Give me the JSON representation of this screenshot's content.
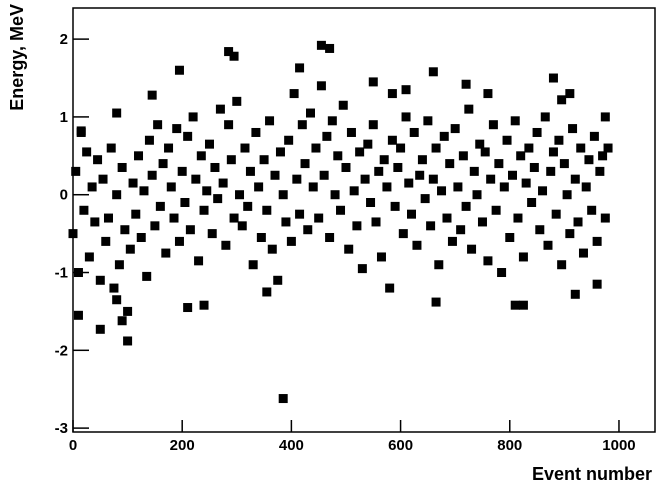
{
  "chart_data": {
    "type": "scatter",
    "xlabel": "Event number",
    "ylabel": "Energy, MeV",
    "color": "#000000",
    "xlim": [
      0,
      1066
    ],
    "ylim": [
      -3.05,
      2.4
    ],
    "xticks": [
      0,
      200,
      400,
      600,
      800,
      1000
    ],
    "yticks": [
      -3,
      -2,
      -1,
      0,
      1,
      2
    ],
    "x": [
      0,
      5,
      10,
      15,
      20,
      25,
      30,
      35,
      40,
      45,
      50,
      55,
      60,
      65,
      70,
      75,
      80,
      85,
      90,
      95,
      100,
      105,
      110,
      115,
      120,
      125,
      130,
      135,
      140,
      145,
      150,
      155,
      160,
      165,
      170,
      175,
      180,
      185,
      190,
      195,
      200,
      205,
      210,
      215,
      220,
      225,
      230,
      235,
      240,
      245,
      250,
      255,
      260,
      265,
      270,
      275,
      280,
      285,
      290,
      295,
      300,
      305,
      310,
      315,
      320,
      325,
      330,
      335,
      340,
      345,
      350,
      355,
      360,
      365,
      370,
      375,
      380,
      385,
      390,
      395,
      400,
      405,
      410,
      415,
      420,
      425,
      430,
      435,
      440,
      445,
      450,
      455,
      460,
      465,
      470,
      475,
      480,
      485,
      490,
      495,
      500,
      505,
      510,
      515,
      520,
      525,
      530,
      535,
      540,
      545,
      550,
      555,
      560,
      565,
      570,
      575,
      580,
      585,
      590,
      595,
      600,
      605,
      610,
      615,
      620,
      625,
      630,
      635,
      640,
      645,
      650,
      655,
      660,
      665,
      670,
      675,
      680,
      685,
      690,
      695,
      700,
      705,
      710,
      715,
      720,
      725,
      730,
      735,
      740,
      745,
      750,
      755,
      760,
      765,
      770,
      775,
      780,
      785,
      790,
      795,
      800,
      805,
      810,
      815,
      820,
      825,
      830,
      835,
      840,
      845,
      850,
      855,
      860,
      865,
      870,
      875,
      880,
      885,
      890,
      895,
      900,
      905,
      910,
      915,
      920,
      925,
      930,
      935,
      940,
      945,
      950,
      955,
      960,
      965,
      970,
      975,
      980,
      385,
      455,
      470,
      285,
      295,
      195,
      415,
      660,
      880,
      100,
      50,
      10,
      90,
      80,
      210,
      240,
      665,
      810,
      825,
      920,
      960,
      355,
      145,
      80,
      15,
      720,
      910,
      895,
      975,
      760,
      550,
      585,
      610
    ],
    "y": [
      -0.5,
      0.3,
      -1.0,
      0.8,
      -0.2,
      0.55,
      -0.8,
      0.1,
      -0.35,
      0.45,
      -1.1,
      0.2,
      -0.6,
      -0.3,
      0.6,
      -1.2,
      0.0,
      -0.9,
      0.35,
      -0.45,
      -1.5,
      -0.7,
      0.15,
      -0.25,
      0.5,
      -0.55,
      0.05,
      -1.05,
      0.7,
      0.25,
      -0.4,
      0.9,
      -0.15,
      0.4,
      -0.75,
      0.6,
      0.1,
      -0.3,
      0.85,
      -0.6,
      0.3,
      -0.1,
      0.75,
      -0.45,
      1.0,
      0.2,
      -0.85,
      0.5,
      -0.2,
      0.05,
      0.65,
      -0.5,
      0.35,
      -0.05,
      1.1,
      0.15,
      -0.65,
      0.9,
      0.45,
      -0.3,
      1.2,
      0.0,
      -0.4,
      0.6,
      -0.15,
      0.3,
      -0.9,
      0.8,
      0.1,
      -0.55,
      0.45,
      -0.2,
      0.95,
      -0.7,
      0.25,
      -1.1,
      0.55,
      0.0,
      -0.35,
      0.7,
      -0.6,
      1.3,
      0.2,
      -0.25,
      0.9,
      0.4,
      -0.45,
      1.05,
      0.1,
      0.6,
      -0.3,
      1.4,
      0.25,
      0.75,
      -0.55,
      0.95,
      0.0,
      0.5,
      -0.2,
      1.15,
      0.35,
      -0.7,
      0.8,
      0.05,
      -0.4,
      0.55,
      -0.95,
      0.2,
      0.65,
      -0.1,
      0.9,
      -0.35,
      0.3,
      -0.8,
      0.45,
      0.1,
      -1.2,
      0.7,
      -0.15,
      0.35,
      0.6,
      -0.5,
      1.0,
      0.15,
      -0.25,
      0.8,
      -0.65,
      0.25,
      0.45,
      -0.05,
      0.95,
      -0.4,
      0.2,
      0.6,
      -0.9,
      0.05,
      0.75,
      -0.3,
      0.4,
      -0.6,
      0.85,
      0.1,
      -0.45,
      0.5,
      -0.15,
      1.1,
      -0.7,
      0.3,
      0.0,
      0.65,
      -0.35,
      0.55,
      -0.85,
      0.2,
      0.9,
      -0.2,
      0.4,
      -1.0,
      0.1,
      0.7,
      -0.55,
      0.25,
      0.95,
      -0.3,
      0.5,
      -0.8,
      0.15,
      0.6,
      -0.1,
      0.35,
      0.8,
      -0.45,
      0.05,
      1.0,
      -0.65,
      0.3,
      0.55,
      -0.25,
      0.7,
      -0.9,
      0.4,
      0.0,
      -0.5,
      0.85,
      0.2,
      -0.35,
      0.6,
      -0.75,
      0.1,
      0.45,
      -0.2,
      0.75,
      -0.6,
      0.3,
      0.5,
      -0.3,
      0.6,
      -2.62,
      1.92,
      1.88,
      1.84,
      1.78,
      1.6,
      1.63,
      1.58,
      1.5,
      -1.88,
      -1.73,
      -1.55,
      -1.62,
      -1.35,
      -1.45,
      -1.42,
      -1.38,
      -1.42,
      -1.42,
      -1.28,
      -1.15,
      -1.25,
      1.28,
      1.05,
      0.82,
      1.42,
      1.3,
      1.22,
      1.0,
      1.3,
      1.45,
      1.3,
      1.35
    ]
  }
}
